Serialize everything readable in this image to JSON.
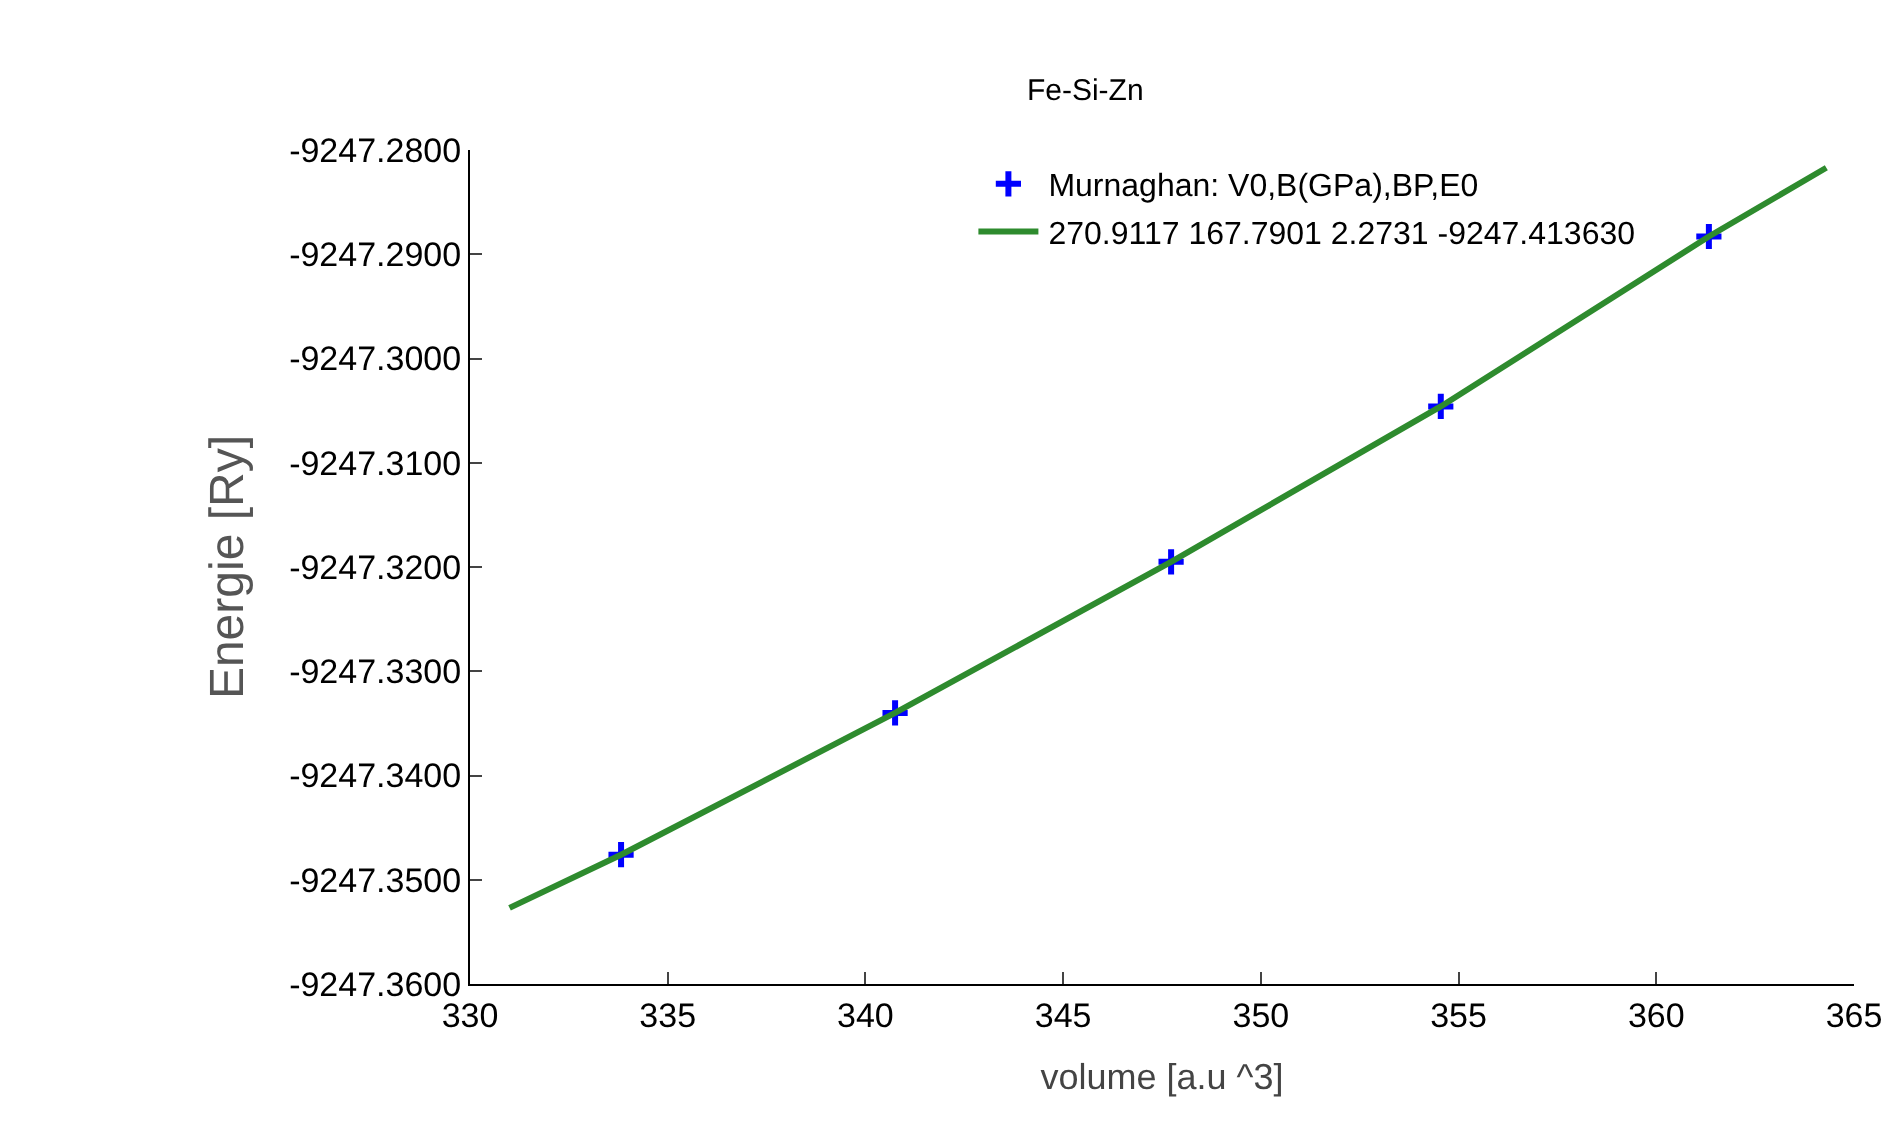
{
  "chart_data": {
    "type": "scatter",
    "title": "Fe-Si-Zn",
    "xlabel": "volume [a.u ^3]",
    "ylabel": "Energie [Ry]",
    "xlim": [
      330,
      365
    ],
    "xticks": [
      330,
      335,
      340,
      345,
      350,
      355,
      360,
      365
    ],
    "ylim": [
      -9247.36,
      -9247.28
    ],
    "yticks": [
      {
        "value": -9247.36,
        "label": "-9247.3600"
      },
      {
        "value": -9247.35,
        "label": "-9247.3500"
      },
      {
        "value": -9247.34,
        "label": "-9247.3400"
      },
      {
        "value": -9247.33,
        "label": "-9247.3300"
      },
      {
        "value": -9247.32,
        "label": "-9247.3200"
      },
      {
        "value": -9247.31,
        "label": "-9247.3100"
      },
      {
        "value": -9247.3,
        "label": "-9247.3000"
      },
      {
        "value": -9247.29,
        "label": "-9247.2900"
      },
      {
        "value": -9247.28,
        "label": "-9247.2800"
      }
    ],
    "legend": "top right",
    "series": [
      {
        "name": "Murnaghan: V0,B(GPa),BP,E0",
        "marker": "cross",
        "color": "#0000ff",
        "x": [
          333.82,
          340.75,
          347.73,
          354.55,
          361.33
        ],
        "values": [
          -9247.3476,
          -9247.334,
          -9247.3195,
          -9247.3046,
          -9247.2883
        ]
      },
      {
        "name": "270.9117 167.7901 2.2731 -9247.413630",
        "type": "line",
        "marker": "none",
        "color": "#2e8b2e",
        "x": [
          331.0,
          333.82,
          340.75,
          347.73,
          354.55,
          361.33,
          364.3
        ],
        "values": [
          -9247.3527,
          -9247.3476,
          -9247.334,
          -9247.3195,
          -9247.3046,
          -9247.2883,
          -9247.2817
        ]
      }
    ]
  }
}
